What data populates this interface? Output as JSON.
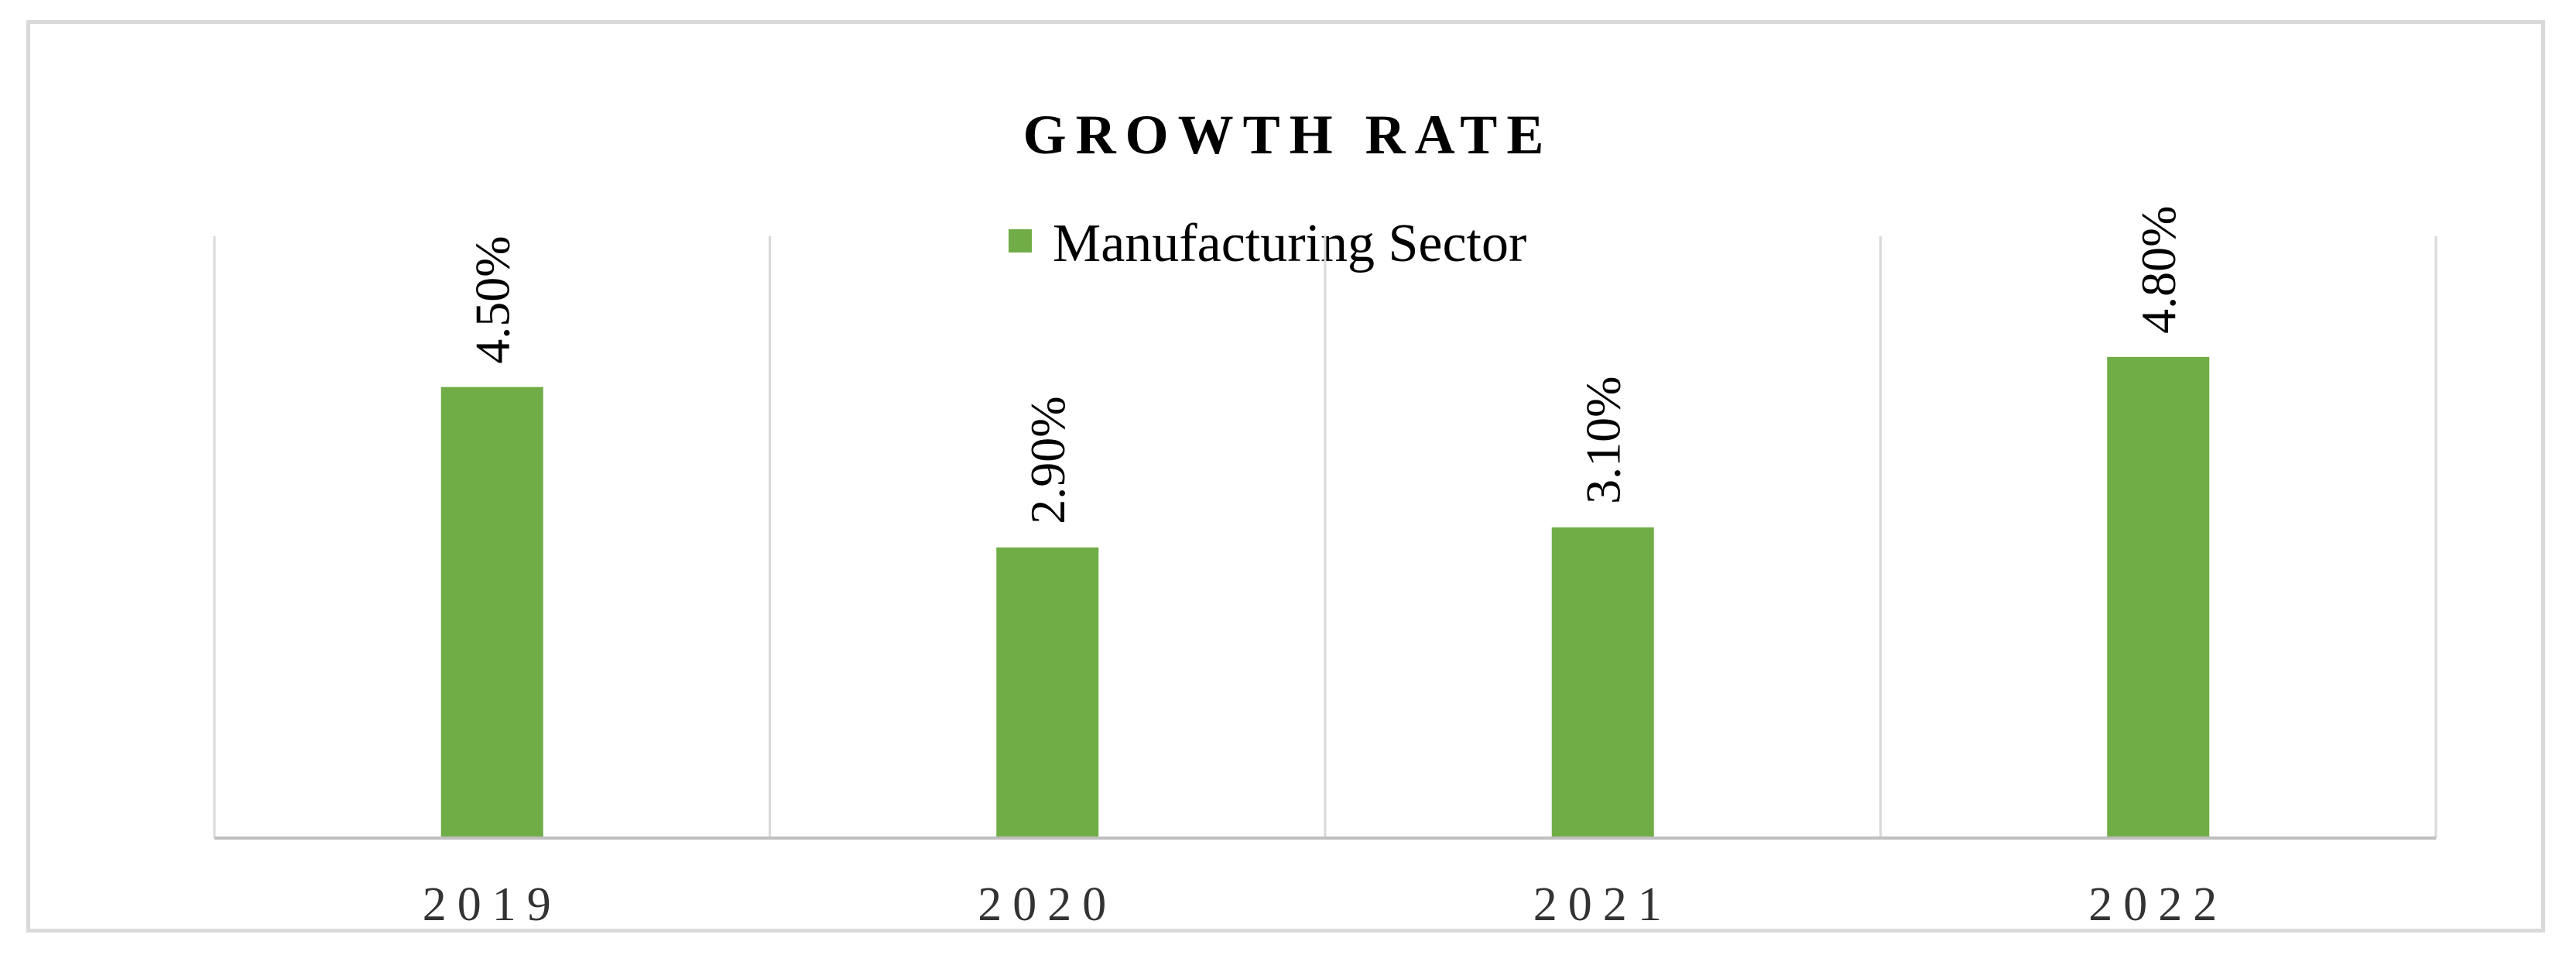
{
  "chart_data": {
    "type": "bar",
    "title": "GROWTH RATE",
    "legend": {
      "position": "top",
      "entries": [
        "Manufacturing Sector"
      ]
    },
    "categories": [
      "2019",
      "2020",
      "2021",
      "2022"
    ],
    "series": [
      {
        "name": "Manufacturing Sector",
        "values": [
          4.5,
          2.9,
          3.1,
          4.8
        ],
        "labels": [
          "4.50%",
          "2.90%",
          "3.10%",
          "4.80%"
        ],
        "color": "#70ad47"
      }
    ],
    "ylim": [
      0,
      6
    ],
    "grid": "vertical",
    "xlabel": "",
    "ylabel": ""
  }
}
